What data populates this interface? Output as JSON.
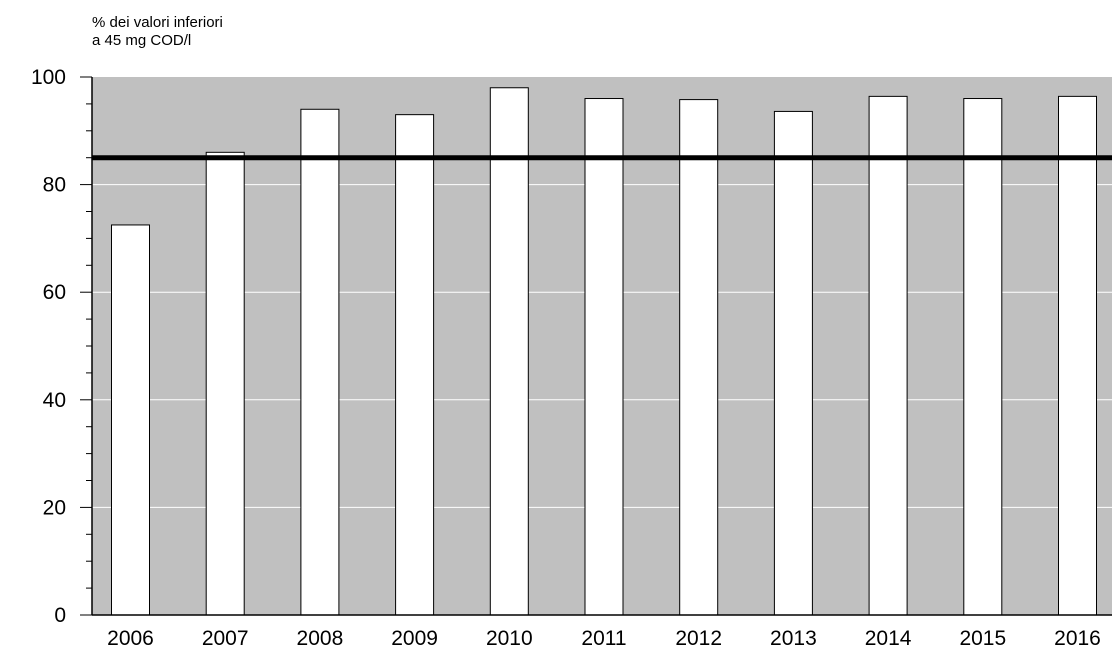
{
  "chart_data": {
    "type": "bar",
    "categories": [
      "2006",
      "2007",
      "2008",
      "2009",
      "2010",
      "2011",
      "2012",
      "2013",
      "2014",
      "2015",
      "2016"
    ],
    "values": [
      72.5,
      86,
      94,
      93,
      98,
      96,
      95.8,
      93.6,
      96.4,
      96,
      96.4
    ],
    "ylabel_lines": [
      "% dei valori inferiori",
      "a 45 mg COD/l"
    ],
    "xlabel": "",
    "ylim": [
      0,
      100
    ],
    "yticks": [
      0,
      20,
      40,
      60,
      80,
      100
    ],
    "reference_line": {
      "value": 85
    },
    "grid": true,
    "colors": {
      "plot_background": "#c0c0c0",
      "bar_fill": "#ffffff",
      "bar_stroke": "#000000",
      "gridline": "#ffffff",
      "reference_line": "#000000"
    }
  }
}
